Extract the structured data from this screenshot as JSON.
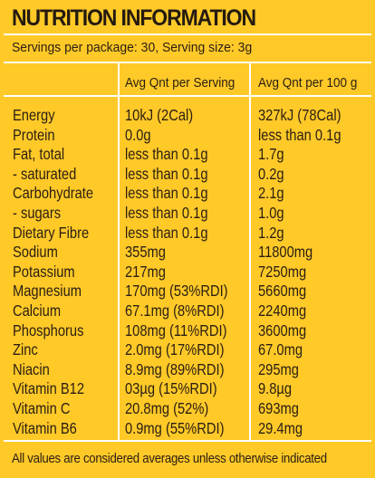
{
  "title": "NUTRITION INFORMATION",
  "serving_info": "Servings per package: 30, Serving size: 3g",
  "columns": {
    "per_serving": "Avg Qnt per Serving",
    "per_100g": "Avg Qnt per 100 g"
  },
  "rows": [
    {
      "name": "Energy",
      "per_serving": "10kJ (2Cal)",
      "per_100g": "327kJ (78Cal)"
    },
    {
      "name": "Protein",
      "per_serving": "0.0g",
      "per_100g": "less than 0.1g"
    },
    {
      "name": "Fat, total",
      "per_serving": "less than 0.1g",
      "per_100g": "1.7g"
    },
    {
      "name": "- saturated",
      "per_serving": "less than 0.1g",
      "per_100g": "0.2g"
    },
    {
      "name": "Carbohydrate",
      "per_serving": "less than 0.1g",
      "per_100g": "2.1g"
    },
    {
      "name": "- sugars",
      "per_serving": "less than 0.1g",
      "per_100g": "1.0g"
    },
    {
      "name": "Dietary Fibre",
      "per_serving": "less than 0.1g",
      "per_100g": "1.2g"
    },
    {
      "name": "Sodium",
      "per_serving": "355mg",
      "per_100g": "11800mg"
    },
    {
      "name": "Potassium",
      "per_serving": "217mg",
      "per_100g": "7250mg"
    },
    {
      "name": "Magnesium",
      "per_serving": "170mg (53%RDI)",
      "per_100g": "5660mg"
    },
    {
      "name": "Calcium",
      "per_serving": "67.1mg (8%RDI)",
      "per_100g": "2240mg"
    },
    {
      "name": "Phosphorus",
      "per_serving": "108mg (11%RDI)",
      "per_100g": "3600mg"
    },
    {
      "name": "Zinc",
      "per_serving": "2.0mg (17%RDI)",
      "per_100g": "67.0mg"
    },
    {
      "name": "Niacin",
      "per_serving": "8.9mg (89%RDI)",
      "per_100g": "295mg"
    },
    {
      "name": "Vitamin B12",
      "per_serving": "03µg (15%RDI)",
      "per_100g": "9.8µg"
    },
    {
      "name": "Vitamin C",
      "per_serving": "20.8mg (52%)",
      "per_100g": "693mg"
    },
    {
      "name": "Vitamin B6",
      "per_serving": "0.9mg (55%RDI)",
      "per_100g": "29.4mg"
    }
  ],
  "footer": "All values are considered averages unless otherwise indicated",
  "colors": {
    "background": "#ffc928",
    "rules": "#ffffff",
    "text": "#2a1e12"
  }
}
